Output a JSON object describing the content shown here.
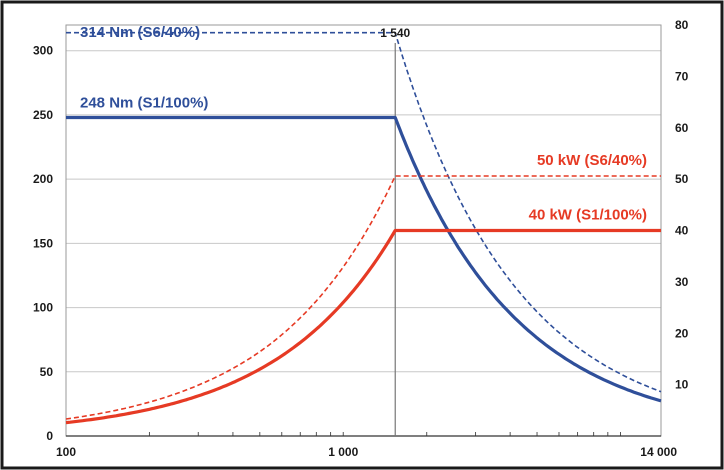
{
  "chart_data": {
    "type": "line",
    "x_scale": "log",
    "xlim": [
      100,
      14000
    ],
    "x_ticks": [
      100,
      1000,
      14000
    ],
    "x_tick_labels": [
      "100",
      "1 000",
      "14 000"
    ],
    "y_left_lim": [
      0,
      320
    ],
    "y_left_ticks": [
      0,
      50,
      100,
      150,
      200,
      250,
      300
    ],
    "y_right_lim": [
      0,
      80
    ],
    "y_right_ticks": [
      10,
      20,
      30,
      40,
      50,
      60,
      70,
      80
    ],
    "grid": true,
    "marker": {
      "x": 1540,
      "label": "1 540"
    },
    "colors": {
      "torque": "#2f4f9a",
      "power": "#e63a24",
      "frame": "#1a1a1a",
      "grid": "#c8c8c8"
    },
    "series": [
      {
        "name": "314 Nm (S6/40%)",
        "axis": "left",
        "style": "dashed",
        "color": "#2f4f9a",
        "x": [
          100,
          1540,
          2000,
          3000,
          5000,
          8000,
          14000
        ],
        "y": [
          314,
          314,
          241.8,
          161.2,
          96.7,
          60.4,
          34.5
        ]
      },
      {
        "name": "248 Nm (S1/100%)",
        "axis": "left",
        "style": "solid",
        "color": "#2f4f9a",
        "x": [
          100,
          1540,
          2000,
          3000,
          5000,
          8000,
          14000
        ],
        "y": [
          248,
          248,
          191,
          127.3,
          76.4,
          47.7,
          27.3
        ]
      },
      {
        "name": "50 kW (S6/40%)",
        "axis": "right",
        "style": "dashed",
        "color": "#e63a24",
        "x": [
          100,
          200,
          300,
          500,
          800,
          1200,
          1540,
          14000
        ],
        "y": [
          3.3,
          6.6,
          9.9,
          16.4,
          26.3,
          39.5,
          50.6,
          50.6
        ]
      },
      {
        "name": "40 kW (S1/100%)",
        "axis": "right",
        "style": "solid",
        "color": "#e63a24",
        "x": [
          100,
          200,
          300,
          500,
          800,
          1200,
          1540,
          14000
        ],
        "y": [
          2.6,
          5.2,
          7.8,
          13,
          20.8,
          31.2,
          40,
          40
        ]
      }
    ]
  }
}
